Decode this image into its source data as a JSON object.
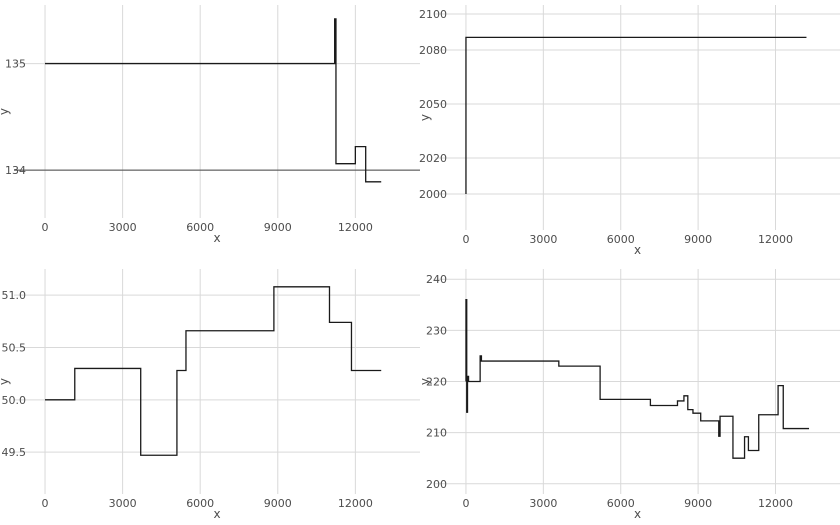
{
  "chart_data": [
    {
      "type": "line",
      "step": true,
      "xlabel": "x",
      "ylabel": "y",
      "xlim": [
        -1200,
        14500
      ],
      "ylim": [
        133.55,
        135.55
      ],
      "xticks": [
        0,
        3000,
        6000,
        9000,
        12000
      ],
      "yticks": [
        134,
        135
      ],
      "grid": true,
      "hlines": [
        134
      ],
      "x": [
        0,
        11200,
        11200,
        11250,
        11250,
        12000,
        12000,
        12400,
        12400,
        13000
      ],
      "y": [
        135,
        135,
        135.42,
        135.42,
        134.06,
        134.06,
        134.22,
        134.22,
        133.89,
        133.89
      ]
    },
    {
      "type": "line",
      "step": true,
      "xlabel": "x",
      "ylabel": "y",
      "xlim": [
        -1200,
        14500
      ],
      "ylim": [
        1980,
        2105
      ],
      "xticks": [
        0,
        3000,
        6000,
        9000,
        12000
      ],
      "yticks": [
        2000,
        2020,
        2050,
        2080,
        2100
      ],
      "grid": true,
      "x": [
        0,
        0,
        13200
      ],
      "y": [
        2000,
        2087,
        2087
      ]
    },
    {
      "type": "line",
      "step": true,
      "xlabel": "x",
      "ylabel": "y",
      "xlim": [
        -1200,
        14500
      ],
      "ylim": [
        49.1,
        51.25
      ],
      "xticks": [
        0,
        3000,
        6000,
        9000,
        12000
      ],
      "yticks": [
        49.5,
        50.0,
        50.5,
        51.0
      ],
      "grid": true,
      "x": [
        0,
        1150,
        1150,
        3700,
        3700,
        5100,
        5100,
        5450,
        5450,
        8850,
        8850,
        11000,
        11000,
        11850,
        11850,
        13000
      ],
      "y": [
        50.0,
        50.0,
        50.3,
        50.3,
        49.47,
        49.47,
        50.28,
        50.28,
        50.66,
        50.66,
        51.08,
        51.08,
        50.74,
        50.74,
        50.28,
        50.28
      ]
    },
    {
      "type": "line",
      "step": true,
      "xlabel": "x",
      "ylabel": "y",
      "xlim": [
        -1200,
        14500
      ],
      "ylim": [
        198,
        242
      ],
      "xticks": [
        0,
        3000,
        6000,
        9000,
        12000
      ],
      "yticks": [
        200,
        210,
        220,
        230,
        240
      ],
      "grid": true,
      "x": [
        0,
        0,
        30,
        30,
        60,
        60,
        100,
        100,
        550,
        550,
        600,
        600,
        3600,
        3600,
        5200,
        5200,
        7150,
        7150,
        8200,
        8200,
        8450,
        8450,
        8600,
        8600,
        8800,
        8800,
        9100,
        9100,
        9800,
        9800,
        9850,
        9850,
        10350,
        10350,
        10800,
        10800,
        10950,
        10950,
        11350,
        11350,
        12100,
        12100,
        12300,
        12300,
        12800,
        12800,
        13300
      ],
      "y": [
        220,
        236,
        236,
        214,
        214,
        221,
        221,
        220,
        220,
        225,
        225,
        224,
        224,
        223,
        223,
        216.5,
        216.5,
        215.3,
        215.3,
        216.2,
        216.2,
        217.2,
        217.2,
        214.5,
        214.5,
        213.8,
        213.8,
        212.3,
        212.3,
        209.3,
        209.3,
        213.2,
        213.2,
        205,
        205,
        209.2,
        209.2,
        206.5,
        206.5,
        213.5,
        213.5,
        219.2,
        219.2,
        210.8,
        210.8,
        210.8,
        210.8
      ]
    }
  ]
}
